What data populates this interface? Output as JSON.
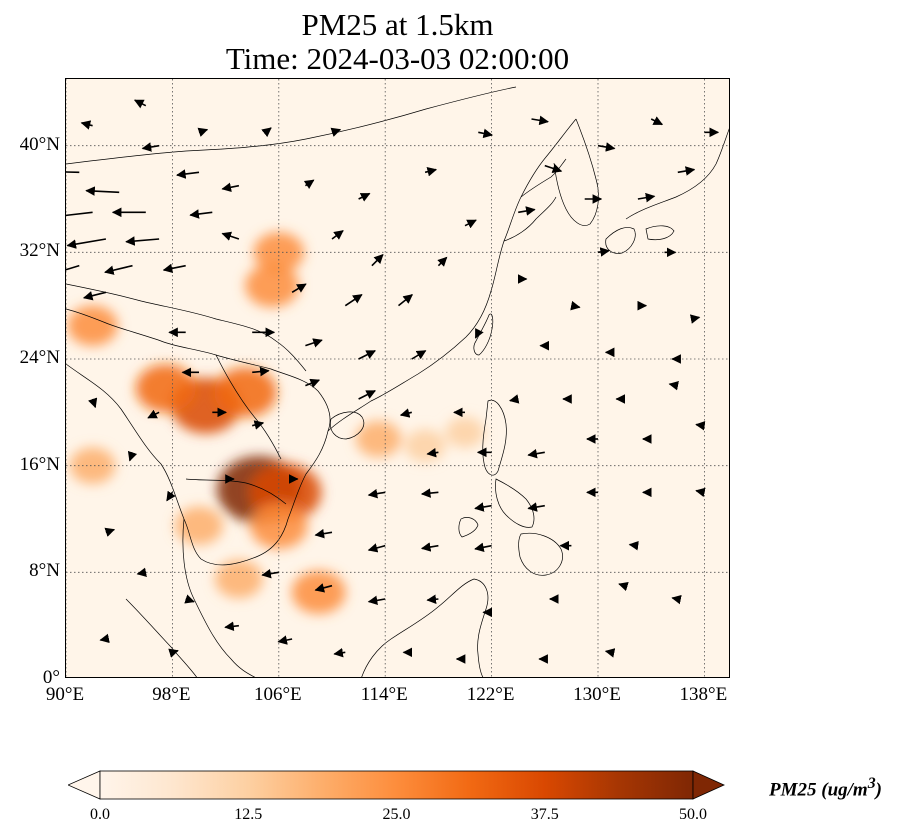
{
  "title": {
    "line1": "PM25 at 1.5km",
    "line2": "Time: 2024-03-03 02:00:00"
  },
  "map": {
    "lon_range": [
      90,
      140
    ],
    "lat_range": [
      0,
      45
    ],
    "lat_ticks": [
      {
        "value": 0,
        "label": "0°"
      },
      {
        "value": 8,
        "label": "8°N"
      },
      {
        "value": 16,
        "label": "16°N"
      },
      {
        "value": 24,
        "label": "24°N"
      },
      {
        "value": 32,
        "label": "32°N"
      },
      {
        "value": 40,
        "label": "40°N"
      }
    ],
    "lon_ticks": [
      {
        "value": 90,
        "label": "90°E"
      },
      {
        "value": 98,
        "label": "98°E"
      },
      {
        "value": 106,
        "label": "106°E"
      },
      {
        "value": 114,
        "label": "114°E"
      },
      {
        "value": 122,
        "label": "122°E"
      },
      {
        "value": 130,
        "label": "130°E"
      },
      {
        "value": 138,
        "label": "138°E"
      }
    ],
    "gridlines": "dotted",
    "background_color": "#fff5e9",
    "coastline_color": "#000000",
    "hotspots": [
      {
        "lon": 104.5,
        "lat": 14.2,
        "value": 50
      },
      {
        "lon": 106.5,
        "lat": 14.0,
        "value": 40
      },
      {
        "lon": 100.5,
        "lat": 20.5,
        "value": 38
      },
      {
        "lon": 103.5,
        "lat": 21.5,
        "value": 32
      },
      {
        "lon": 97.5,
        "lat": 21.8,
        "value": 30
      },
      {
        "lon": 105.5,
        "lat": 29.5,
        "value": 25
      },
      {
        "lon": 106.0,
        "lat": 32.0,
        "value": 22
      },
      {
        "lon": 92.0,
        "lat": 26.5,
        "value": 22
      },
      {
        "lon": 92.0,
        "lat": 16.0,
        "value": 18
      },
      {
        "lon": 103.0,
        "lat": 7.5,
        "value": 20
      },
      {
        "lon": 109.0,
        "lat": 6.5,
        "value": 25
      },
      {
        "lon": 100.0,
        "lat": 11.5,
        "value": 20
      },
      {
        "lon": 106.0,
        "lat": 11.5,
        "value": 28
      },
      {
        "lon": 113.5,
        "lat": 18.0,
        "value": 18
      },
      {
        "lon": 117.0,
        "lat": 17.5,
        "value": 14
      },
      {
        "lon": 120.0,
        "lat": 18.5,
        "value": 12
      }
    ],
    "wind_vectors": [
      {
        "lon": 91,
        "lat": 38,
        "u": -8,
        "v": 0.2
      },
      {
        "lon": 94,
        "lat": 36.5,
        "u": -6,
        "v": 0.3
      },
      {
        "lon": 92,
        "lat": 35,
        "u": -7,
        "v": -0.8
      },
      {
        "lon": 96,
        "lat": 35,
        "u": -6,
        "v": 0
      },
      {
        "lon": 93,
        "lat": 33,
        "u": -7,
        "v": -1.2
      },
      {
        "lon": 97,
        "lat": 33,
        "u": -6,
        "v": -0.5
      },
      {
        "lon": 91,
        "lat": 31,
        "u": -5,
        "v": -1.5
      },
      {
        "lon": 95,
        "lat": 31,
        "u": -5,
        "v": -1.2
      },
      {
        "lon": 99,
        "lat": 31,
        "u": -4,
        "v": -0.8
      },
      {
        "lon": 93,
        "lat": 29,
        "u": -4,
        "v": -1
      },
      {
        "lon": 101,
        "lat": 35,
        "u": -4,
        "v": -0.5
      },
      {
        "lon": 103,
        "lat": 33,
        "u": -3,
        "v": 1
      },
      {
        "lon": 100,
        "lat": 38,
        "u": -4,
        "v": -0.5
      },
      {
        "lon": 103,
        "lat": 37,
        "u": -3,
        "v": -0.6
      },
      {
        "lon": 97,
        "lat": 40,
        "u": -3,
        "v": -0.5
      },
      {
        "lon": 92,
        "lat": 41.5,
        "u": -2,
        "v": 0.5
      },
      {
        "lon": 96,
        "lat": 43,
        "u": -2,
        "v": 1
      },
      {
        "lon": 100,
        "lat": 41,
        "u": 1.5,
        "v": 0.5
      },
      {
        "lon": 105,
        "lat": 41,
        "u": 1,
        "v": 0.8
      },
      {
        "lon": 110,
        "lat": 41,
        "u": 1.5,
        "v": 0.5
      },
      {
        "lon": 108,
        "lat": 37,
        "u": 1.5,
        "v": 1
      },
      {
        "lon": 112,
        "lat": 36,
        "u": 2,
        "v": 1
      },
      {
        "lon": 110,
        "lat": 33,
        "u": 2,
        "v": 1.5
      },
      {
        "lon": 113,
        "lat": 31,
        "u": 2,
        "v": 2
      },
      {
        "lon": 107,
        "lat": 29,
        "u": 2.5,
        "v": 1.5
      },
      {
        "lon": 111,
        "lat": 28,
        "u": 3,
        "v": 2
      },
      {
        "lon": 115,
        "lat": 28,
        "u": 2.5,
        "v": 2
      },
      {
        "lon": 99,
        "lat": 26,
        "u": -3,
        "v": 0
      },
      {
        "lon": 104,
        "lat": 26,
        "u": 4,
        "v": 0
      },
      {
        "lon": 108,
        "lat": 25,
        "u": 3,
        "v": 1
      },
      {
        "lon": 112,
        "lat": 24,
        "u": 3,
        "v": 1.5
      },
      {
        "lon": 116,
        "lat": 24,
        "u": 2.5,
        "v": 1.5
      },
      {
        "lon": 100,
        "lat": 23,
        "u": -3,
        "v": 0
      },
      {
        "lon": 104,
        "lat": 23,
        "u": 3,
        "v": 0.3
      },
      {
        "lon": 108,
        "lat": 22,
        "u": 2.5,
        "v": 1
      },
      {
        "lon": 112,
        "lat": 21,
        "u": 3,
        "v": 1.5
      },
      {
        "lon": 97,
        "lat": 20,
        "u": -2,
        "v": -1
      },
      {
        "lon": 101,
        "lat": 20,
        "u": 2.5,
        "v": 0
      },
      {
        "lon": 104,
        "lat": 19,
        "u": 2,
        "v": 0.5
      },
      {
        "lon": 116,
        "lat": 20,
        "u": -2,
        "v": -0.5
      },
      {
        "lon": 120,
        "lat": 20,
        "u": -2,
        "v": 0
      },
      {
        "lon": 124,
        "lat": 21,
        "u": -1.5,
        "v": -0.3
      },
      {
        "lon": 128,
        "lat": 21,
        "u": -1.5,
        "v": 0
      },
      {
        "lon": 132,
        "lat": 21,
        "u": -1.5,
        "v": 0
      },
      {
        "lon": 136,
        "lat": 22,
        "u": -1.5,
        "v": 0.3
      },
      {
        "lon": 118,
        "lat": 17,
        "u": -2,
        "v": -0.3
      },
      {
        "lon": 122,
        "lat": 17,
        "u": -2.5,
        "v": 0
      },
      {
        "lon": 126,
        "lat": 17,
        "u": -3,
        "v": -0.5
      },
      {
        "lon": 130,
        "lat": 18,
        "u": -2,
        "v": 0
      },
      {
        "lon": 134,
        "lat": 18,
        "u": -1.5,
        "v": 0
      },
      {
        "lon": 138,
        "lat": 19,
        "u": -1.5,
        "v": 0.2
      },
      {
        "lon": 114,
        "lat": 14,
        "u": -3,
        "v": -0.5
      },
      {
        "lon": 118,
        "lat": 14,
        "u": -3,
        "v": -0.3
      },
      {
        "lon": 122,
        "lat": 13,
        "u": -3,
        "v": -0.5
      },
      {
        "lon": 126,
        "lat": 13,
        "u": -3,
        "v": -0.5
      },
      {
        "lon": 130,
        "lat": 14,
        "u": -2,
        "v": 0
      },
      {
        "lon": 134,
        "lat": 14,
        "u": -1.5,
        "v": 0
      },
      {
        "lon": 138,
        "lat": 14,
        "u": -1.5,
        "v": 0.3
      },
      {
        "lon": 110,
        "lat": 11,
        "u": -3,
        "v": -0.5
      },
      {
        "lon": 114,
        "lat": 10,
        "u": -3,
        "v": -0.8
      },
      {
        "lon": 118,
        "lat": 10,
        "u": -3,
        "v": -0.5
      },
      {
        "lon": 122,
        "lat": 10,
        "u": -3,
        "v": -0.6
      },
      {
        "lon": 128,
        "lat": 10,
        "u": -2,
        "v": 0
      },
      {
        "lon": 133,
        "lat": 10,
        "u": -1.5,
        "v": 0.2
      },
      {
        "lon": 106,
        "lat": 8,
        "u": -3,
        "v": -0.5
      },
      {
        "lon": 110,
        "lat": 7,
        "u": -3,
        "v": -0.8
      },
      {
        "lon": 114,
        "lat": 6,
        "u": -3,
        "v": -0.5
      },
      {
        "lon": 118,
        "lat": 6,
        "u": -2,
        "v": -0.2
      },
      {
        "lon": 122,
        "lat": 5,
        "u": -1.5,
        "v": 0
      },
      {
        "lon": 127,
        "lat": 6,
        "u": -1.5,
        "v": 0
      },
      {
        "lon": 132,
        "lat": 7,
        "u": -1,
        "v": 0.3
      },
      {
        "lon": 136,
        "lat": 6,
        "u": -1,
        "v": 0.2
      },
      {
        "lon": 103,
        "lat": 4,
        "u": -2.5,
        "v": -0.3
      },
      {
        "lon": 107,
        "lat": 3,
        "u": -2.5,
        "v": -0.5
      },
      {
        "lon": 111,
        "lat": 2,
        "u": -2,
        "v": -0.3
      },
      {
        "lon": 116,
        "lat": 2,
        "u": -1.5,
        "v": 0
      },
      {
        "lon": 120,
        "lat": 1.5,
        "u": -1.5,
        "v": 0
      },
      {
        "lon": 126,
        "lat": 1.5,
        "u": -1,
        "v": 0
      },
      {
        "lon": 131,
        "lat": 2,
        "u": -1,
        "v": 0.2
      },
      {
        "lon": 93,
        "lat": 11,
        "u": 1.5,
        "v": 0.5
      },
      {
        "lon": 96,
        "lat": 8,
        "u": -1.5,
        "v": -0.3
      },
      {
        "lon": 99,
        "lat": 6,
        "u": 1.5,
        "v": -0.5
      },
      {
        "lon": 93,
        "lat": 3,
        "u": -1,
        "v": -0.2
      },
      {
        "lon": 98,
        "lat": 2,
        "u": 1,
        "v": 0.3
      },
      {
        "lon": 92,
        "lat": 21,
        "u": 0.5,
        "v": -1.5
      },
      {
        "lon": 95,
        "lat": 17,
        "u": -0.5,
        "v": -1.5
      },
      {
        "lon": 98,
        "lat": 14,
        "u": -1,
        "v": -1.5
      },
      {
        "lon": 102,
        "lat": 15,
        "u": 1.5,
        "v": 0
      },
      {
        "lon": 107,
        "lat": 15,
        "u": 1,
        "v": 0
      },
      {
        "lon": 118,
        "lat": 31,
        "u": 1.5,
        "v": 1.5
      },
      {
        "lon": 120,
        "lat": 34,
        "u": 2,
        "v": 1
      },
      {
        "lon": 117,
        "lat": 38,
        "u": 2,
        "v": 0.5
      },
      {
        "lon": 121,
        "lat": 41,
        "u": 2.5,
        "v": -0.5
      },
      {
        "lon": 125,
        "lat": 42,
        "u": 3,
        "v": -0.5
      },
      {
        "lon": 126,
        "lat": 38.5,
        "u": 3,
        "v": -1
      },
      {
        "lon": 130,
        "lat": 40,
        "u": 3,
        "v": -0.5
      },
      {
        "lon": 124,
        "lat": 35,
        "u": 3,
        "v": 0.5
      },
      {
        "lon": 129,
        "lat": 36,
        "u": 3,
        "v": 0
      },
      {
        "lon": 133,
        "lat": 36,
        "u": 3,
        "v": 0.5
      },
      {
        "lon": 136,
        "lat": 38,
        "u": 3,
        "v": 0.5
      },
      {
        "lon": 138,
        "lat": 41,
        "u": 2.5,
        "v": 0
      },
      {
        "lon": 134,
        "lat": 42,
        "u": 2,
        "v": -1
      },
      {
        "lon": 130,
        "lat": 32,
        "u": 2,
        "v": 0.3
      },
      {
        "lon": 135,
        "lat": 32,
        "u": 2,
        "v": 0
      },
      {
        "lon": 124,
        "lat": 30,
        "u": 1.5,
        "v": 0
      },
      {
        "lon": 128,
        "lat": 28,
        "u": 1.5,
        "v": -0.3
      },
      {
        "lon": 133,
        "lat": 28,
        "u": 1.5,
        "v": 0
      },
      {
        "lon": 137,
        "lat": 27,
        "u": 1.5,
        "v": 0.3
      },
      {
        "lon": 121,
        "lat": 26,
        "u": -0.5,
        "v": -1
      },
      {
        "lon": 126,
        "lat": 25,
        "u": -0.8,
        "v": 0
      },
      {
        "lon": 131,
        "lat": 24.5,
        "u": -1,
        "v": 0
      },
      {
        "lon": 136,
        "lat": 24,
        "u": -1,
        "v": 0
      }
    ]
  },
  "colorbar": {
    "min": 0,
    "max": 50,
    "extend": "both",
    "colors": [
      "#fff5eb",
      "#fee6ce",
      "#fdd0a2",
      "#fdae6b",
      "#fd8d3c",
      "#f16913",
      "#d94801",
      "#a63603",
      "#7f2704"
    ],
    "ticks": [
      {
        "value": 0,
        "label": "0.0"
      },
      {
        "value": 12.5,
        "label": "12.5"
      },
      {
        "value": 25,
        "label": "25.0"
      },
      {
        "value": 37.5,
        "label": "37.5"
      },
      {
        "value": 50,
        "label": "50.0"
      }
    ],
    "label": "PM25 (ug/m",
    "label_superscript": "3",
    "label_close": ")"
  }
}
